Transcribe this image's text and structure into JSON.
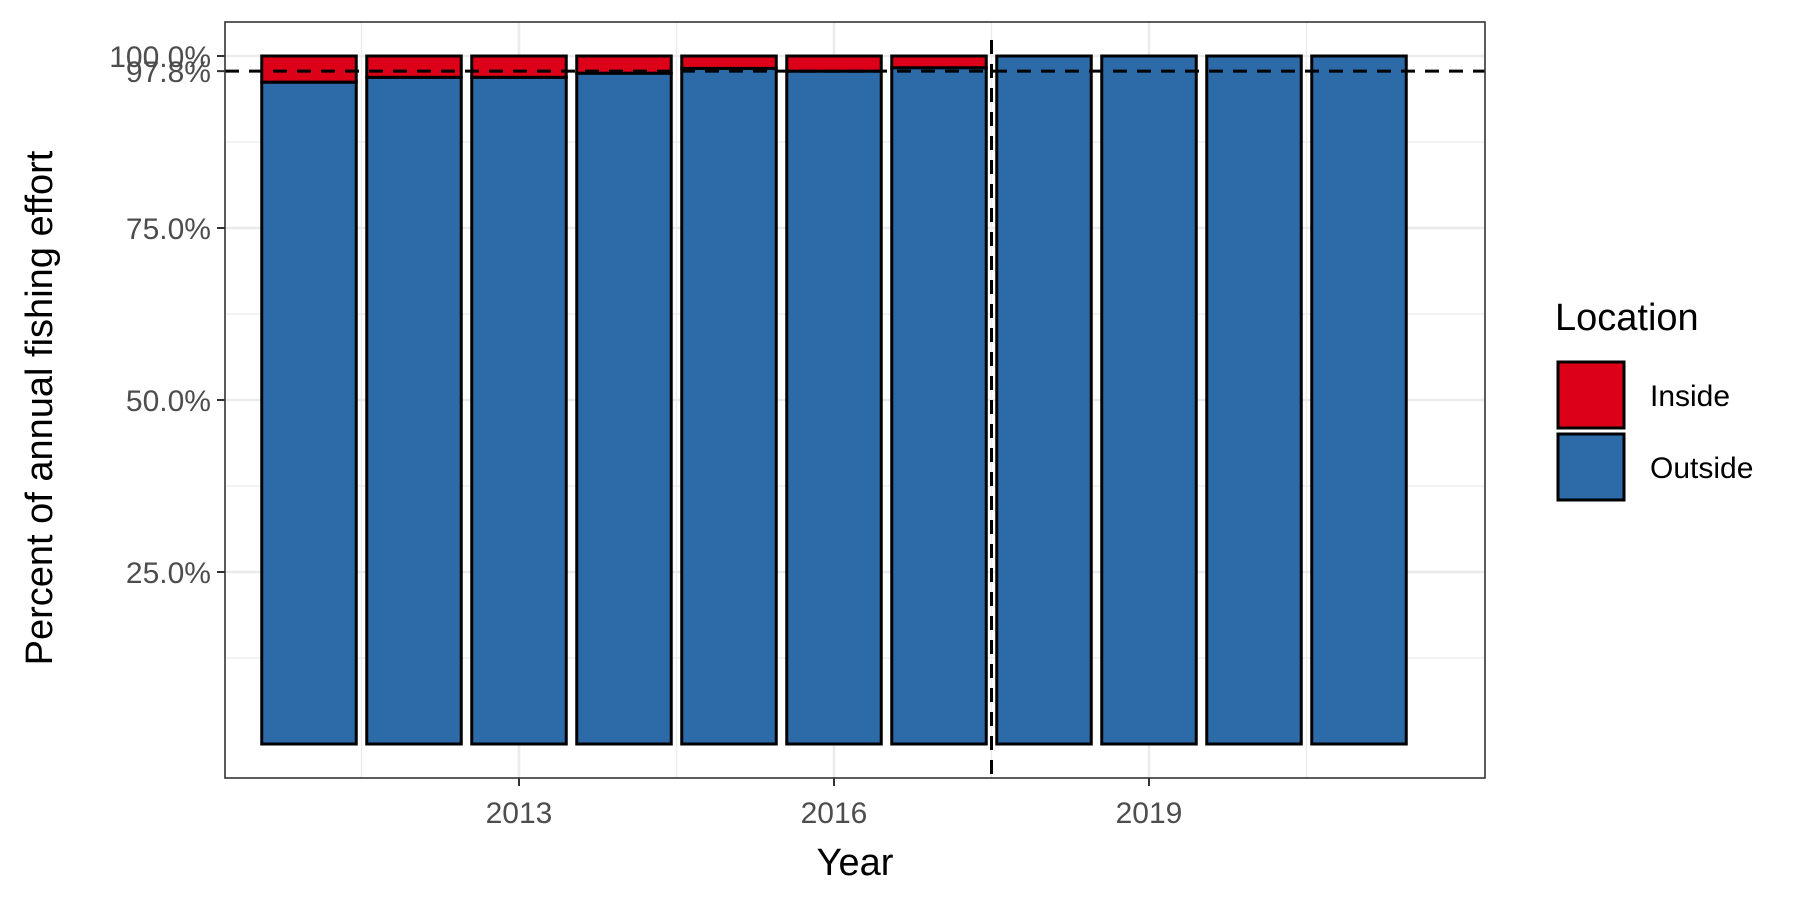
{
  "chart_data": {
    "type": "bar",
    "stacked": true,
    "xlabel": "Year",
    "ylabel": "Percent of annual fishing effort",
    "x": [
      2011,
      2012,
      2013,
      2014,
      2015,
      2016,
      2017,
      2018,
      2019,
      2020,
      2021
    ],
    "x_ticks": [
      2013,
      2016,
      2019
    ],
    "x_tick_labels": [
      "2013",
      "2016",
      "2019"
    ],
    "ylim": [
      0,
      100
    ],
    "y_ticks": [
      25,
      50,
      75,
      97.8,
      100
    ],
    "y_tick_labels": [
      "25.0%",
      "50.0%",
      "75.0%",
      "97.8%",
      "100.0%"
    ],
    "series": [
      {
        "name": "Outside",
        "color": "#2D6AA8",
        "values": [
          96.2,
          96.9,
          96.9,
          97.5,
          98.2,
          97.8,
          98.3,
          100,
          100,
          100,
          100
        ]
      },
      {
        "name": "Inside",
        "color": "#DC0019",
        "values": [
          3.8,
          3.1,
          3.1,
          2.5,
          1.8,
          2.2,
          1.7,
          0,
          0,
          0,
          0
        ]
      }
    ],
    "reference_lines": [
      {
        "axis": "y",
        "value": 97.8,
        "style": "dashed"
      },
      {
        "axis": "x",
        "value": 2017.5,
        "style": "dashed"
      }
    ],
    "legend": {
      "title": "Location",
      "position": "right",
      "items": [
        {
          "label": "Inside",
          "color": "#DC0019"
        },
        {
          "label": "Outside",
          "color": "#2D6AA8"
        }
      ]
    },
    "grid": true,
    "grid_color": "#ebebeb",
    "bar_outline_color": "#000000"
  }
}
